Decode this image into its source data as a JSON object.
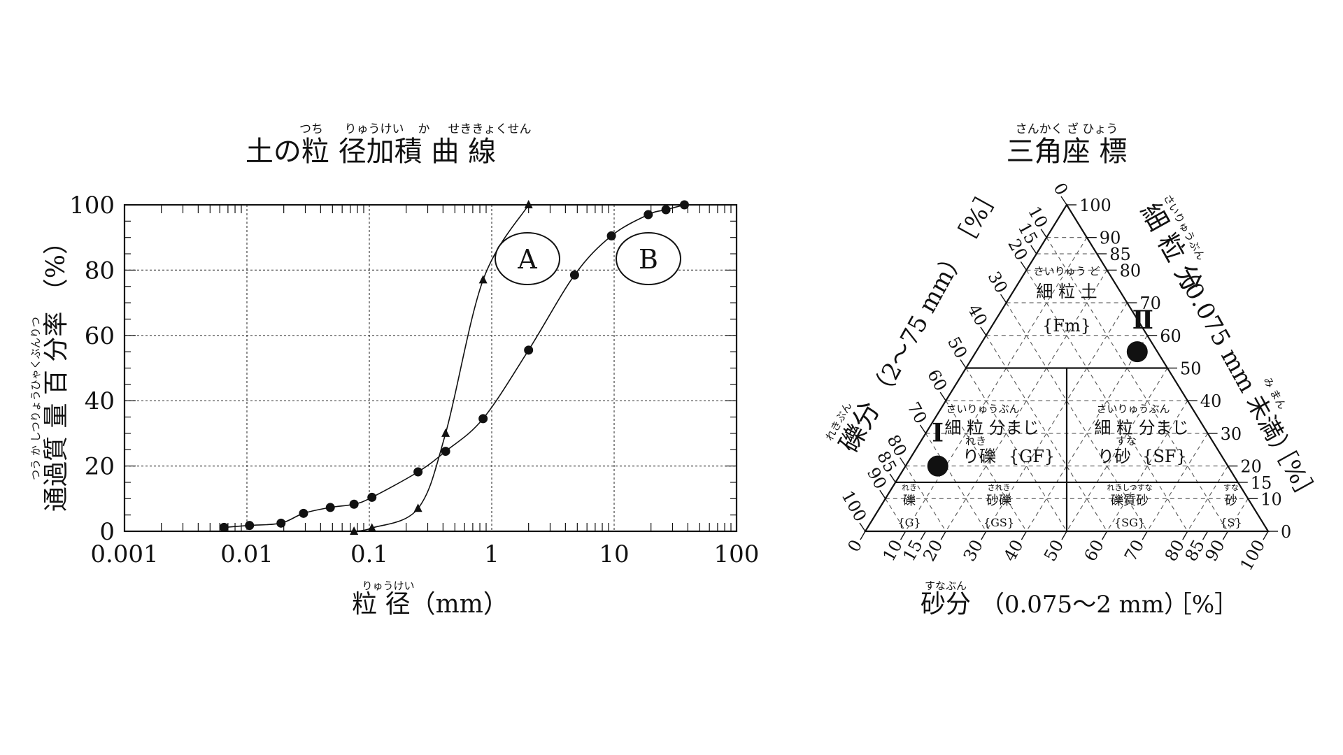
{
  "chart_data": [
    {
      "type": "line",
      "title": "土の粒 径加積 曲 線",
      "title_ruby": [
        "つち",
        "りゅうけい",
        "か",
        "せききょくせん"
      ],
      "xlabel": "粒 径（mm）",
      "xlabel_ruby": "りゅうけい",
      "ylabel": "通過質 量 百 分率 （%）",
      "ylabel_ruby": "つう か しつりょうひゃくぶんりつ",
      "xscale": "log",
      "xlim": [
        0.001,
        100
      ],
      "ylim": [
        0,
        100
      ],
      "x_ticks": [
        "0.001",
        "0.01",
        "0.1",
        "1",
        "10",
        "100"
      ],
      "y_ticks": [
        "0",
        "20",
        "40",
        "60",
        "80",
        "100"
      ],
      "grid": true,
      "series": [
        {
          "name": "A",
          "marker": "triangle",
          "points": [
            [
              0.075,
              0
            ],
            [
              0.105,
              1
            ],
            [
              0.25,
              7
            ],
            [
              0.42,
              30
            ],
            [
              0.85,
              77
            ],
            [
              2.0,
              100
            ]
          ]
        },
        {
          "name": "B",
          "marker": "circle",
          "points": [
            [
              0.0065,
              1.2
            ],
            [
              0.0105,
              1.8
            ],
            [
              0.019,
              2.5
            ],
            [
              0.029,
              5.5
            ],
            [
              0.048,
              7.3
            ],
            [
              0.075,
              8.3
            ],
            [
              0.105,
              10.4
            ],
            [
              0.25,
              18.2
            ],
            [
              0.42,
              24.5
            ],
            [
              0.85,
              34.5
            ],
            [
              2.0,
              55.5
            ],
            [
              4.75,
              78.5
            ],
            [
              9.5,
              90.5
            ],
            [
              19,
              97
            ],
            [
              26.5,
              98.5
            ],
            [
              37.5,
              100
            ]
          ]
        }
      ],
      "annotations": [
        "A",
        "B"
      ]
    },
    {
      "type": "ternary",
      "title": "三角座 標",
      "title_ruby": "さんかく ざ ひょう",
      "axes": {
        "fine": {
          "label": "細 粒 分",
          "ruby": "さいりゅうぶん",
          "sublabel": "（0.075 mm 未満）",
          "sub_ruby": "み まん",
          "unit": "［%］"
        },
        "gravel": {
          "label": "礫分",
          "ruby": "れきぶん",
          "sublabel": "（2〜75 mm）",
          "unit": "［%］"
        },
        "sand": {
          "label": "砂分",
          "ruby": "すなぶん",
          "sublabel": "（0.075〜2 mm）",
          "unit": "［%］"
        }
      },
      "fine_ticks": [
        "100",
        "90",
        "85",
        "80",
        "70",
        "60",
        "50",
        "40",
        "30",
        "20",
        "15",
        "10",
        "0"
      ],
      "gravel_ticks": [
        "0",
        "10",
        "15",
        "20",
        "30",
        "40",
        "50",
        "60",
        "70",
        "80",
        "85",
        "90",
        "100"
      ],
      "sand_ticks": [
        "0",
        "10",
        "15",
        "20",
        "30",
        "40",
        "50",
        "60",
        "70",
        "80",
        "85",
        "90",
        "100"
      ],
      "zones": [
        {
          "label": "細 粒 土",
          "ruby": "さいりゅう ど",
          "code": "{Fm}"
        },
        {
          "label": "細 粒 分まじり礫",
          "ruby": "さいりゅうぶん",
          "ruby2": "れき",
          "label_line1": "細 粒 分まじ",
          "label_line2": "り礫",
          "code": "{GF}"
        },
        {
          "label": "細 粒 分まじり砂",
          "ruby": "さいりゅうぶん",
          "ruby2": "すな",
          "label_line1": "細 粒 分まじ",
          "label_line2": "り砂",
          "code": "{SF}"
        },
        {
          "label": "礫",
          "ruby": "れき",
          "code": "{G}"
        },
        {
          "label": "砂礫",
          "ruby": "されき",
          "code": "{GS}"
        },
        {
          "label": "礫質砂",
          "ruby": "れきしつすな",
          "code": "{SG}"
        },
        {
          "label": "砂",
          "ruby": "すな",
          "code": "{S}"
        }
      ],
      "points": [
        {
          "name": "Ⅰ",
          "fine": 20,
          "gravel": 72,
          "sand": 8
        },
        {
          "name": "Ⅱ",
          "fine": 55,
          "gravel": 5,
          "sand": 40
        }
      ]
    }
  ]
}
